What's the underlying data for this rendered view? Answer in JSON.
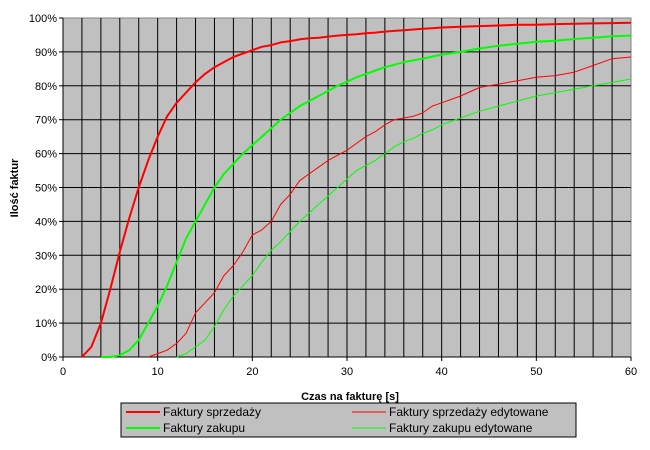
{
  "chart_data": {
    "type": "line",
    "title": "",
    "xlabel": "Czas na fakturę [s]",
    "ylabel": "Ilość faktur",
    "xlim": [
      0,
      60
    ],
    "ylim": [
      0,
      100
    ],
    "x_ticks": [
      0,
      10,
      20,
      30,
      40,
      50,
      60
    ],
    "y_ticks": [
      0,
      10,
      20,
      30,
      40,
      50,
      60,
      70,
      80,
      90,
      100
    ],
    "y_tick_labels": [
      "0%",
      "10%",
      "20%",
      "30%",
      "40%",
      "50%",
      "60%",
      "70%",
      "80%",
      "90%",
      "100%"
    ],
    "grid": true,
    "plot_background": "#c0c0c0",
    "legend_position": "bottom",
    "series": [
      {
        "name": "Faktury sprzedaży",
        "color": "#ff0000",
        "width": 2,
        "x": [
          2,
          3,
          4,
          5,
          6,
          7,
          8,
          9,
          10,
          11,
          12,
          13,
          14,
          15,
          16,
          17,
          18,
          19,
          20,
          21,
          22,
          23,
          24,
          25,
          26,
          27,
          28,
          29,
          30,
          31,
          32,
          33,
          34,
          35,
          36,
          37,
          38,
          39,
          40,
          42,
          44,
          46,
          48,
          50,
          52,
          54,
          56,
          58,
          60
        ],
        "values": [
          0,
          3,
          10,
          20,
          31,
          41,
          50,
          58,
          65,
          71,
          75,
          78,
          81,
          83.5,
          85.5,
          87,
          88.5,
          89.5,
          90.5,
          91.5,
          92,
          92.8,
          93.2,
          93.7,
          94,
          94.2,
          94.5,
          94.8,
          95,
          95.2,
          95.5,
          95.7,
          96,
          96.2,
          96.4,
          96.6,
          96.8,
          97,
          97.2,
          97.4,
          97.6,
          97.8,
          98,
          98,
          98.2,
          98.3,
          98.4,
          98.5,
          98.6
        ]
      },
      {
        "name": "Faktury zakupu",
        "color": "#00ff00",
        "width": 2,
        "x": [
          4,
          5,
          6,
          7,
          8,
          9,
          10,
          11,
          12,
          13,
          14,
          15,
          16,
          17,
          18,
          19,
          20,
          21,
          22,
          23,
          24,
          25,
          26,
          27,
          28,
          29,
          30,
          31,
          32,
          33,
          34,
          35,
          36,
          37,
          38,
          39,
          40,
          42,
          44,
          46,
          48,
          50,
          52,
          54,
          56,
          58,
          60
        ],
        "values": [
          0,
          0,
          0.5,
          2,
          5,
          10,
          15,
          21,
          28,
          35,
          40,
          45,
          50,
          54,
          57,
          60,
          62.5,
          65,
          67.5,
          70,
          72,
          74,
          75.5,
          77,
          78.5,
          80,
          81.2,
          82.5,
          83.5,
          84.5,
          85.5,
          86.2,
          87,
          87.5,
          88,
          88.6,
          89.2,
          90,
          91,
          91.8,
          92.4,
          93,
          93.3,
          93.8,
          94.2,
          94.6,
          94.8
        ]
      },
      {
        "name": "Faktury sprzedaży edytowane",
        "color": "#ff0000",
        "width": 1,
        "x": [
          9,
          10,
          11,
          12,
          13,
          14,
          15,
          16,
          17,
          18,
          19,
          20,
          21,
          22,
          23,
          24,
          25,
          26,
          27,
          28,
          29,
          30,
          31,
          32,
          33,
          34,
          35,
          36,
          37,
          38,
          39,
          40,
          42,
          44,
          46,
          48,
          50,
          52,
          54,
          56,
          58,
          60
        ],
        "values": [
          0,
          1,
          2,
          4,
          7,
          13,
          16,
          19,
          24,
          27,
          31,
          36,
          37.5,
          40,
          45,
          48,
          52,
          54,
          56,
          58,
          59.5,
          61,
          63,
          65,
          66.5,
          68.5,
          70,
          70.5,
          71,
          72,
          74,
          75,
          77,
          79.5,
          80.5,
          81.5,
          82.5,
          83,
          84,
          86,
          88,
          88.5
        ]
      },
      {
        "name": "Faktury zakupu edytowane",
        "color": "#00ff00",
        "width": 1,
        "x": [
          12,
          13,
          14,
          15,
          16,
          17,
          18,
          19,
          20,
          21,
          22,
          23,
          24,
          25,
          26,
          27,
          28,
          29,
          30,
          31,
          32,
          33,
          34,
          35,
          36,
          37,
          38,
          39,
          40,
          42,
          44,
          46,
          48,
          50,
          52,
          54,
          56,
          58,
          60
        ],
        "values": [
          0,
          1,
          3,
          5,
          9,
          14,
          18,
          21,
          24,
          28,
          31.5,
          34,
          37,
          40,
          42.5,
          45,
          47.5,
          50,
          52.5,
          55,
          56.5,
          58,
          60,
          62,
          63.5,
          64.5,
          66,
          67,
          68.5,
          70.5,
          72.5,
          74,
          75.5,
          77,
          78,
          79,
          80,
          81,
          82
        ]
      }
    ]
  }
}
